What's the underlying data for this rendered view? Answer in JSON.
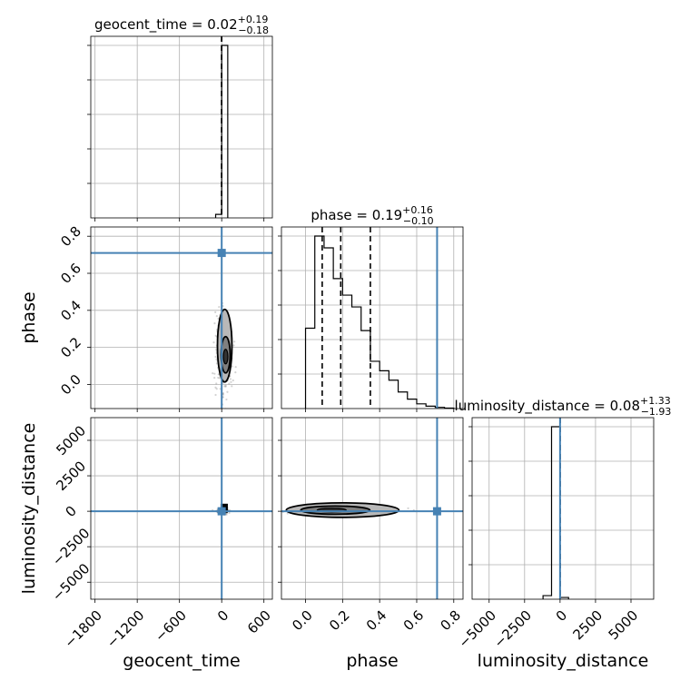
{
  "chart_data": {
    "type": "corner",
    "grid": true,
    "colors": {
      "truth": "#4682b4",
      "hist": "#000000",
      "grid": "#b0b0b0",
      "samples": "#808080"
    },
    "parameters": [
      {
        "name": "geocent_time",
        "label": "geocent_time",
        "title": {
          "prefix": "geocent_time = 0.02",
          "upper": "+0.19",
          "lower": "−0.18"
        },
        "range": [
          -1860,
          720
        ],
        "ticks": [
          -1800,
          -1200,
          -600,
          0,
          600
        ],
        "tick_labels": [
          "−1800",
          "−1200",
          "−600",
          "0",
          "600"
        ],
        "median": 0.02,
        "quantiles": [
          -0.16,
          0.02,
          0.21
        ],
        "hist": {
          "edges": [
            -86,
            0,
            86
          ],
          "counts": [
            0.02,
            0.98
          ]
        }
      },
      {
        "name": "phase",
        "label": "phase",
        "title": {
          "prefix": "phase = 0.19",
          "upper": "+0.16",
          "lower": "−0.10"
        },
        "range": [
          -0.13,
          0.85
        ],
        "ticks": [
          0.0,
          0.2,
          0.4,
          0.6,
          0.8
        ],
        "tick_labels": [
          "0.0",
          "0.2",
          "0.4",
          "0.6",
          "0.8"
        ],
        "median": 0.19,
        "quantiles": [
          0.09,
          0.19,
          0.35
        ],
        "truth": 0.71,
        "hist": {
          "edges": [
            0.0,
            0.05,
            0.1,
            0.15,
            0.2,
            0.25,
            0.3,
            0.35,
            0.4,
            0.45,
            0.5,
            0.55,
            0.6,
            0.65,
            0.7,
            0.75,
            0.8
          ],
          "counts": [
            0.34,
            0.73,
            0.68,
            0.55,
            0.48,
            0.43,
            0.33,
            0.2,
            0.16,
            0.12,
            0.07,
            0.04,
            0.02,
            0.01,
            0.005,
            0.002
          ]
        }
      },
      {
        "name": "luminosity_distance",
        "label": "luminosity_distance",
        "title": {
          "prefix": "luminosity_distance = 0.08",
          "upper": "+1.33",
          "lower": "−1.93"
        },
        "range": [
          -6200,
          6600
        ],
        "ticks": [
          -5000,
          -2500,
          0,
          2500,
          5000
        ],
        "tick_labels": [
          "−5000",
          "−2500",
          "0",
          "2500",
          "5000"
        ],
        "median": 0.08,
        "quantiles": [
          -1.85,
          0.08,
          1.41
        ],
        "truth": 0,
        "hist": {
          "edges": [
            -1200,
            -600,
            0,
            600
          ],
          "counts": [
            0.02,
            0.97,
            0.01
          ]
        }
      }
    ],
    "samples_2d": {
      "phase_vs_geocent_time": {
        "x_center": 30,
        "x_spread": 60,
        "y_center": 0.17,
        "y_spread": 0.12
      },
      "luminosity_distance_vs_geocent_time": {
        "x_center": 10,
        "x_spread": 40,
        "y_center": 20,
        "y_spread": 80
      },
      "luminosity_distance_vs_phase": {
        "x_center": 0.2,
        "x_spread": 0.12,
        "y_center": 80,
        "y_spread": 150
      }
    }
  }
}
